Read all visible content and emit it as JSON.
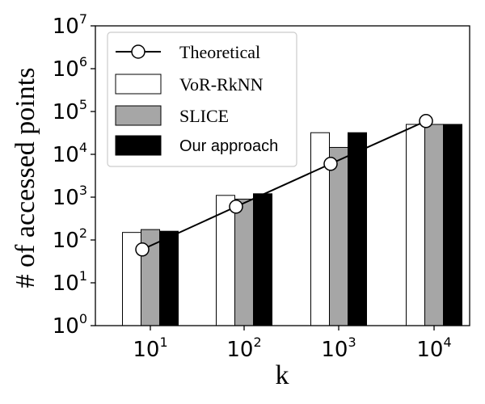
{
  "chart_data": {
    "type": "bar",
    "title": "",
    "xlabel": "k",
    "ylabel": "# of accessed points",
    "yscale": "log",
    "ylim": [
      1,
      10000000
    ],
    "categories": [
      "10^1",
      "10^2",
      "10^3",
      "10^4"
    ],
    "category_labels": [
      {
        "base": "10",
        "exp": "1"
      },
      {
        "base": "10",
        "exp": "2"
      },
      {
        "base": "10",
        "exp": "3"
      },
      {
        "base": "10",
        "exp": "4"
      }
    ],
    "y_ticks": [
      {
        "base": "10",
        "exp": "0",
        "value": 1
      },
      {
        "base": "10",
        "exp": "1",
        "value": 10
      },
      {
        "base": "10",
        "exp": "2",
        "value": 100
      },
      {
        "base": "10",
        "exp": "3",
        "value": 1000
      },
      {
        "base": "10",
        "exp": "4",
        "value": 10000
      },
      {
        "base": "10",
        "exp": "5",
        "value": 100000
      },
      {
        "base": "10",
        "exp": "6",
        "value": 1000000
      },
      {
        "base": "10",
        "exp": "7",
        "value": 10000000
      }
    ],
    "series": [
      {
        "name": "VoR-RkNN",
        "kind": "bar",
        "fill": "#ffffff",
        "values": [
          150,
          1100,
          32000,
          50000
        ]
      },
      {
        "name": "SLICE",
        "kind": "bar",
        "fill": "#a6a6a6",
        "values": [
          175,
          900,
          14500,
          50000
        ]
      },
      {
        "name": "Our approach",
        "kind": "bar",
        "fill": "#000000",
        "values": [
          160,
          1200,
          32000,
          50000
        ]
      }
    ],
    "line_series": {
      "name": "Theoretical",
      "kind": "line-marker",
      "values": [
        60,
        600,
        6000,
        60000
      ]
    },
    "legend": {
      "position": "top-left",
      "entries": [
        "Theoretical",
        "VoR-RkNN",
        "SLICE",
        "Our approach"
      ]
    }
  }
}
